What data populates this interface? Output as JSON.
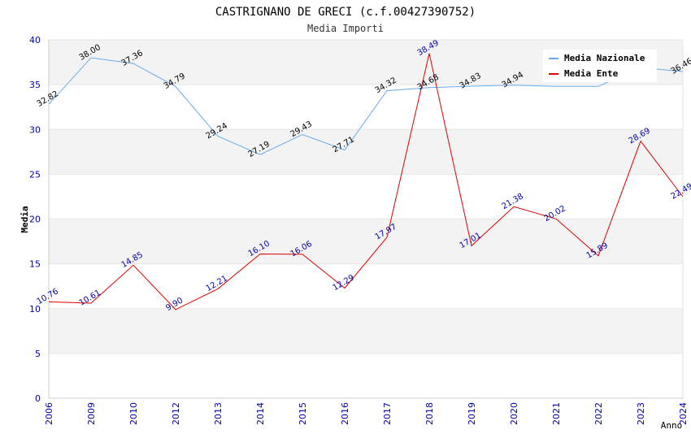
{
  "chart_data": {
    "type": "line",
    "title": "CASTRIGNANO DE GRECI (c.f.00427390752)",
    "subtitle": "Media Importi",
    "xlabel": "Anno",
    "ylabel": "Media",
    "ylim": [
      0,
      40
    ],
    "yticks": [
      "0",
      "5",
      "10",
      "15",
      "20",
      "25",
      "30",
      "35",
      "40"
    ],
    "categories": [
      "2006",
      "2009",
      "2010",
      "2012",
      "2013",
      "2014",
      "2015",
      "2016",
      "2017",
      "2018",
      "2019",
      "2020",
      "2021",
      "2022",
      "2023",
      "2024"
    ],
    "series": [
      {
        "name": "Media Nazionale",
        "color": "#66aaee",
        "values": [
          32.82,
          38.0,
          37.36,
          34.79,
          29.24,
          27.19,
          29.43,
          27.71,
          34.32,
          34.68,
          34.83,
          34.94,
          34.8,
          34.8,
          36.9,
          36.46
        ],
        "labels": [
          "32.82",
          "38.00",
          "37.36",
          "34.79",
          "29.24",
          "27.19",
          "29.43",
          "27.71",
          "34.32",
          "34.68",
          "34.83",
          "34.94",
          "",
          "",
          "",
          "36.46"
        ]
      },
      {
        "name": "Media Ente",
        "color": "#dd0000",
        "values": [
          10.76,
          10.61,
          14.85,
          9.9,
          12.21,
          16.1,
          16.06,
          12.29,
          17.97,
          38.49,
          17.01,
          21.38,
          20.02,
          15.89,
          28.69,
          22.49
        ],
        "labels": [
          "10.76",
          "10.61",
          "14.85",
          "9.90",
          "12.21",
          "16.10",
          "16.06",
          "12.29",
          "17.97",
          "38.49",
          "17.01",
          "21.38",
          "20.02",
          "15.89",
          "28.69",
          "22.49"
        ]
      }
    ],
    "legend": "top-right",
    "grid": true
  }
}
